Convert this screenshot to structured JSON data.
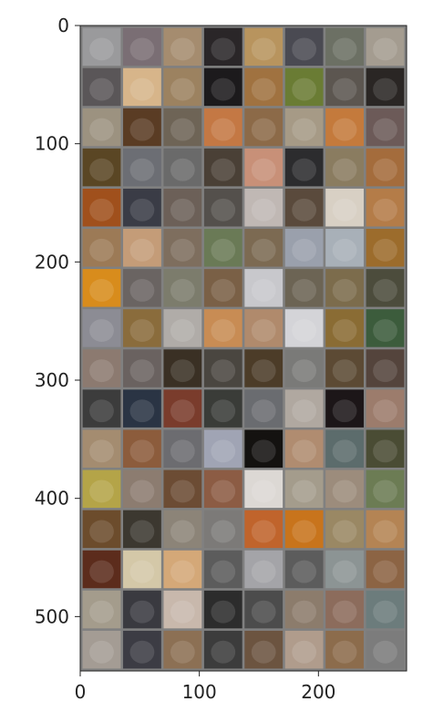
{
  "figure": {
    "content": "image grid of cat face thumbnails",
    "x_ticks": [
      "0",
      "100",
      "200"
    ],
    "y_ticks": [
      "0",
      "100",
      "200",
      "300",
      "400",
      "500"
    ],
    "x_tick_values": [
      0,
      100,
      200
    ],
    "y_tick_values": [
      0,
      100,
      200,
      300,
      400,
      500
    ],
    "x_range": [
      0,
      274
    ],
    "y_range": [
      0,
      546
    ],
    "grid": {
      "rows": 16,
      "cols": 8,
      "cell_size": 32,
      "padding": 2
    },
    "colors": {
      "background": "#ffffff",
      "cell_padding": "#808080",
      "axes": "#222222"
    },
    "cell_colors": [
      [
        "#9a9a9c",
        "#7a6e74",
        "#a58c6f",
        "#2a2628",
        "#b8945e",
        "#4a4a52",
        "#6c7064",
        "#a49c90"
      ],
      [
        "#5a5658",
        "#d7b58a",
        "#9c8260",
        "#1c1a1c",
        "#a07240",
        "#6a7c34",
        "#5c5650",
        "#2a2624"
      ],
      [
        "#9c9280",
        "#5a3c24",
        "#6e6456",
        "#c47844",
        "#8c6a48",
        "#a69a86",
        "#c47a3c",
        "#6c5a58"
      ],
      [
        "#5a4624",
        "#6c6e74",
        "#6a6a6a",
        "#4a4036",
        "#c89078",
        "#2c2c2e",
        "#8a7c60",
        "#a46c3c"
      ],
      [
        "#a0501c",
        "#3a3c46",
        "#6c6058",
        "#54504c",
        "#c0b8b4",
        "#5a4a3c",
        "#d8d0c4",
        "#b47c48"
      ],
      [
        "#9c7a56",
        "#c49c78",
        "#7e6e5e",
        "#6a7a56",
        "#7c6a52",
        "#9aa0ac",
        "#a8b0b8",
        "#9c6c2c"
      ],
      [
        "#d88c1c",
        "#6a6462",
        "#7c7c6c",
        "#7a6046",
        "#c8c8cc",
        "#6c6454",
        "#7c6c4c",
        "#4c4c3c"
      ],
      [
        "#8c8c94",
        "#8a6c3c",
        "#b0aca8",
        "#c88c54",
        "#b08a6c",
        "#d4d4d8",
        "#8a6c34",
        "#3c5c3c"
      ],
      [
        "#8c7a70",
        "#6a6260",
        "#3a3024",
        "#4a4640",
        "#4c3c28",
        "#7a7a78",
        "#5c4a34",
        "#54443c"
      ],
      [
        "#3c3c3c",
        "#2a3444",
        "#7a3c2c",
        "#3a3c38",
        "#6a6c70",
        "#b0a8a0",
        "#1c1618",
        "#9c7c6c"
      ],
      [
        "#a48c70",
        "#8c5c3c",
        "#6c6c70",
        "#a0a4b4",
        "#141210",
        "#b08c70",
        "#5c6c6c",
        "#4a4c34"
      ],
      [
        "#b4a448",
        "#8c7c70",
        "#6c4c34",
        "#8c5c44",
        "#dcd8d4",
        "#a49c8c",
        "#9c8c7c",
        "#6c7c54"
      ],
      [
        "#6c4c2c",
        "#3c3830",
        "#8c8478",
        "#7c7a78",
        "#c0642c",
        "#c8741c",
        "#9a8864",
        "#b48454"
      ],
      [
        "#5c2c1c",
        "#d4c8a8",
        "#d4a878",
        "#5c5c5c",
        "#a4a4a8",
        "#5c5c5c",
        "#8c9494",
        "#8c6444"
      ],
      [
        "#a49c8c",
        "#3a3a40",
        "#c8b8ac",
        "#2c2c2c",
        "#4c4c4c",
        "#8c7c6c",
        "#8c6c5c",
        "#6c7c7c"
      ],
      [
        "#a49c94",
        "#3c3c44",
        "#8c7054",
        "#3c3c3c",
        "#6c5440",
        "#b09c8c",
        "#8c6c4c",
        "#7c7c7c"
      ]
    ]
  }
}
